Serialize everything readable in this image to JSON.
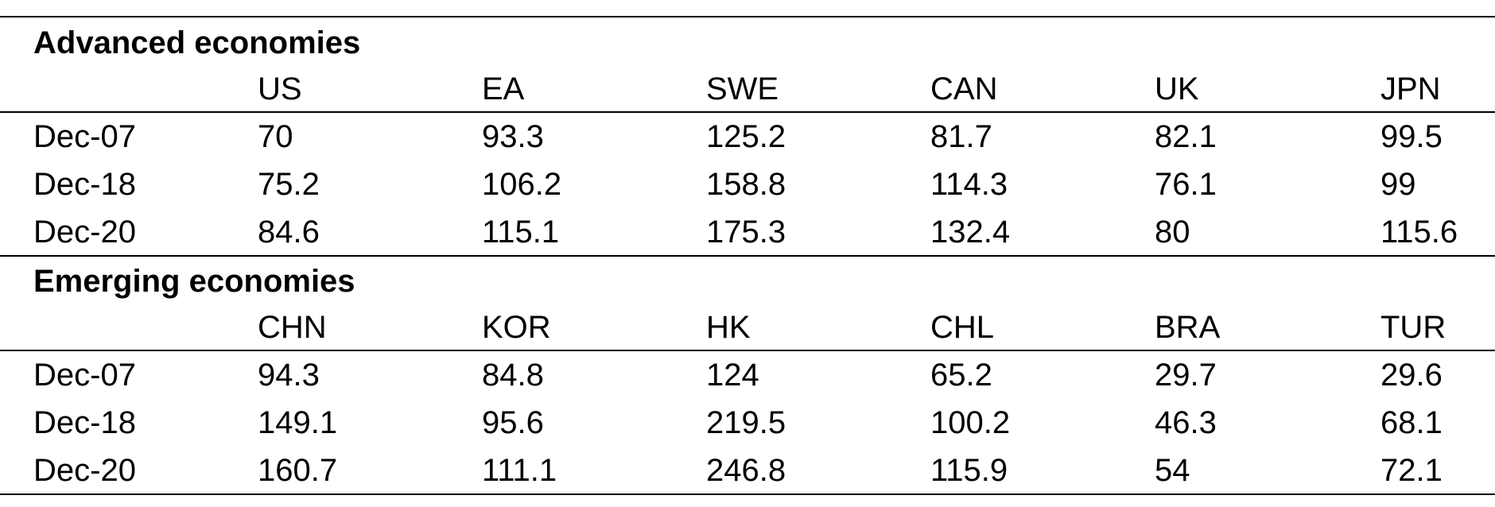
{
  "sections": [
    {
      "title": "Advanced economies",
      "columns": [
        "US",
        "EA",
        "SWE",
        "CAN",
        "UK",
        "JPN"
      ],
      "rows": [
        {
          "label": "Dec-07",
          "values": [
            70,
            93.3,
            125.2,
            81.7,
            82.1,
            99.5
          ]
        },
        {
          "label": "Dec-18",
          "values": [
            75.2,
            106.2,
            158.8,
            114.3,
            76.1,
            99
          ]
        },
        {
          "label": "Dec-20",
          "values": [
            84.6,
            115.1,
            175.3,
            132.4,
            80,
            115.6
          ]
        }
      ]
    },
    {
      "title": "Emerging economies",
      "columns": [
        "CHN",
        "KOR",
        "HK",
        "CHL",
        "BRA",
        "TUR"
      ],
      "rows": [
        {
          "label": "Dec-07",
          "values": [
            94.3,
            84.8,
            124,
            65.2,
            29.7,
            29.6
          ]
        },
        {
          "label": "Dec-18",
          "values": [
            149.1,
            95.6,
            219.5,
            100.2,
            46.3,
            68.1
          ]
        },
        {
          "label": "Dec-20",
          "values": [
            160.7,
            111.1,
            246.8,
            115.9,
            54,
            72.1
          ]
        }
      ]
    }
  ]
}
